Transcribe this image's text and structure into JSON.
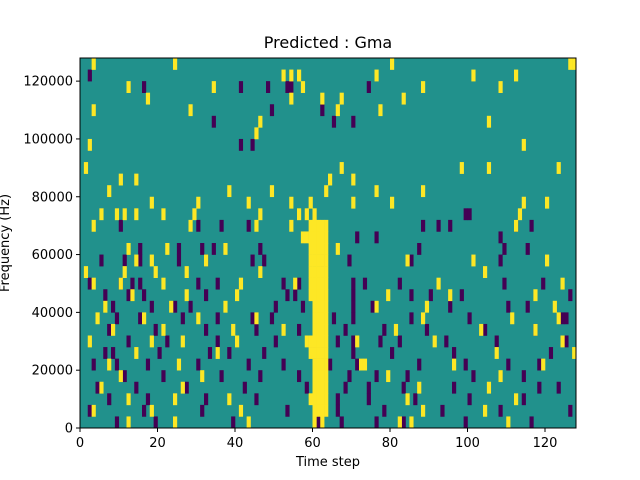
{
  "chart_data": {
    "type": "heatmap",
    "title": "Predicted : Gma",
    "xlabel": "Time step",
    "ylabel": "Frequency (Hz)",
    "xlim": [
      0,
      128
    ],
    "ylim": [
      0,
      128000
    ],
    "x_ticks": [
      0,
      20,
      40,
      60,
      80,
      100,
      120
    ],
    "y_ticks": [
      0,
      20000,
      40000,
      60000,
      80000,
      100000,
      120000
    ],
    "x_tick_labels": [
      "0",
      "20",
      "40",
      "60",
      "80",
      "100",
      "120"
    ],
    "y_tick_labels": [
      "0",
      "20000",
      "40000",
      "60000",
      "80000",
      "100000",
      "120000"
    ],
    "n_time_steps": 128,
    "n_frequency_bins": 32,
    "frequency_bin_hz": 4000,
    "value_levels": {
      "low": -1,
      "mid": 0,
      "high": 1
    },
    "colors": {
      "low": "#440154",
      "mid": "#21918c",
      "high": "#fde725"
    },
    "background_value": 0,
    "low_cells": [
      [
        2,
        30
      ],
      [
        16,
        29
      ],
      [
        41,
        29
      ],
      [
        48,
        29
      ],
      [
        53,
        29
      ],
      [
        54,
        29
      ],
      [
        74,
        29
      ],
      [
        49,
        27
      ],
      [
        62,
        27
      ],
      [
        70,
        26
      ],
      [
        34,
        26
      ],
      [
        65,
        26
      ],
      [
        41,
        24
      ],
      [
        44,
        24
      ],
      [
        100,
        18
      ],
      [
        99,
        18
      ],
      [
        10,
        17
      ],
      [
        30,
        17
      ],
      [
        36,
        17
      ],
      [
        43,
        17
      ],
      [
        88,
        17
      ],
      [
        92,
        17
      ],
      [
        95,
        17
      ],
      [
        112,
        17
      ],
      [
        116,
        17
      ],
      [
        108,
        16
      ],
      [
        71,
        16
      ],
      [
        76,
        16
      ],
      [
        15,
        15
      ],
      [
        25,
        15
      ],
      [
        31,
        15
      ],
      [
        34,
        15
      ],
      [
        46,
        15
      ],
      [
        87,
        15
      ],
      [
        109,
        15
      ],
      [
        115,
        15
      ],
      [
        5,
        14
      ],
      [
        11,
        14
      ],
      [
        15,
        14
      ],
      [
        25,
        14
      ],
      [
        32,
        14
      ],
      [
        44,
        14
      ],
      [
        47,
        14
      ],
      [
        62,
        14
      ],
      [
        69,
        14
      ],
      [
        85,
        14
      ],
      [
        108,
        14
      ],
      [
        2,
        12
      ],
      [
        10,
        12
      ],
      [
        13,
        12
      ],
      [
        15,
        12
      ],
      [
        30,
        12
      ],
      [
        35,
        12
      ],
      [
        52,
        12
      ],
      [
        56,
        12
      ],
      [
        70,
        12
      ],
      [
        73,
        12
      ],
      [
        82,
        12
      ],
      [
        109,
        12
      ],
      [
        119,
        12
      ],
      [
        6,
        11
      ],
      [
        12,
        11
      ],
      [
        16,
        11
      ],
      [
        32,
        11
      ],
      [
        53,
        11
      ],
      [
        55,
        11
      ],
      [
        62,
        11
      ],
      [
        70,
        11
      ],
      [
        85,
        11
      ],
      [
        90,
        11
      ],
      [
        98,
        11
      ],
      [
        126,
        11
      ],
      [
        8,
        10
      ],
      [
        18,
        10
      ],
      [
        24,
        10
      ],
      [
        28,
        10
      ],
      [
        50,
        10
      ],
      [
        57,
        10
      ],
      [
        70,
        10
      ],
      [
        75,
        10
      ],
      [
        95,
        10
      ],
      [
        110,
        10
      ],
      [
        115,
        10
      ],
      [
        9,
        9
      ],
      [
        15,
        9
      ],
      [
        26,
        9
      ],
      [
        35,
        9
      ],
      [
        44,
        9
      ],
      [
        49,
        9
      ],
      [
        65,
        9
      ],
      [
        70,
        9
      ],
      [
        85,
        9
      ],
      [
        100,
        9
      ],
      [
        124,
        9
      ],
      [
        125,
        9
      ],
      [
        7,
        8
      ],
      [
        19,
        8
      ],
      [
        32,
        8
      ],
      [
        45,
        8
      ],
      [
        56,
        8
      ],
      [
        68,
        8
      ],
      [
        78,
        8
      ],
      [
        89,
        8
      ],
      [
        104,
        8
      ],
      [
        117,
        8
      ],
      [
        12,
        7
      ],
      [
        22,
        7
      ],
      [
        35,
        7
      ],
      [
        50,
        7
      ],
      [
        59,
        7
      ],
      [
        66,
        7
      ],
      [
        70,
        7
      ],
      [
        77,
        7
      ],
      [
        82,
        7
      ],
      [
        94,
        7
      ],
      [
        107,
        7
      ],
      [
        125,
        7
      ],
      [
        6,
        6
      ],
      [
        8,
        6
      ],
      [
        20,
        6
      ],
      [
        33,
        6
      ],
      [
        38,
        6
      ],
      [
        47,
        6
      ],
      [
        60,
        6
      ],
      [
        70,
        6
      ],
      [
        80,
        6
      ],
      [
        96,
        6
      ],
      [
        121,
        6
      ],
      [
        3,
        5
      ],
      [
        9,
        5
      ],
      [
        17,
        5
      ],
      [
        30,
        5
      ],
      [
        43,
        5
      ],
      [
        52,
        5
      ],
      [
        64,
        5
      ],
      [
        71,
        5
      ],
      [
        87,
        5
      ],
      [
        99,
        5
      ],
      [
        110,
        5
      ],
      [
        118,
        5
      ],
      [
        11,
        4
      ],
      [
        21,
        4
      ],
      [
        36,
        4
      ],
      [
        46,
        4
      ],
      [
        56,
        4
      ],
      [
        69,
        4
      ],
      [
        76,
        4
      ],
      [
        84,
        4
      ],
      [
        101,
        4
      ],
      [
        114,
        4
      ],
      [
        4,
        3
      ],
      [
        14,
        3
      ],
      [
        27,
        3
      ],
      [
        42,
        3
      ],
      [
        58,
        3
      ],
      [
        68,
        3
      ],
      [
        74,
        3
      ],
      [
        83,
        3
      ],
      [
        96,
        3
      ],
      [
        118,
        3
      ],
      [
        123,
        3
      ],
      [
        7,
        2
      ],
      [
        17,
        2
      ],
      [
        32,
        2
      ],
      [
        45,
        2
      ],
      [
        66,
        2
      ],
      [
        74,
        2
      ],
      [
        86,
        2
      ],
      [
        100,
        2
      ],
      [
        114,
        2
      ],
      [
        2,
        1
      ],
      [
        16,
        1
      ],
      [
        31,
        1
      ],
      [
        53,
        1
      ],
      [
        66,
        1
      ],
      [
        78,
        1
      ],
      [
        93,
        1
      ],
      [
        108,
        1
      ],
      [
        126,
        1
      ],
      [
        9,
        0
      ],
      [
        19,
        0
      ],
      [
        39,
        0
      ],
      [
        61,
        0
      ],
      [
        67,
        0
      ],
      [
        76,
        0
      ],
      [
        83,
        0
      ],
      [
        99,
        0
      ],
      [
        116,
        0
      ]
    ],
    "high_cells": [
      [
        3,
        31
      ],
      [
        24,
        31
      ],
      [
        80,
        31
      ],
      [
        126,
        31
      ],
      [
        127,
        31
      ],
      [
        52,
        30
      ],
      [
        54,
        30
      ],
      [
        56,
        30
      ],
      [
        76,
        30
      ],
      [
        101,
        30
      ],
      [
        112,
        30
      ],
      [
        12,
        29
      ],
      [
        34,
        29
      ],
      [
        57,
        29
      ],
      [
        88,
        29
      ],
      [
        108,
        29
      ],
      [
        17,
        28
      ],
      [
        54,
        28
      ],
      [
        62,
        28
      ],
      [
        67,
        28
      ],
      [
        83,
        28
      ],
      [
        3,
        27
      ],
      [
        28,
        27
      ],
      [
        66,
        27
      ],
      [
        77,
        27
      ],
      [
        46,
        26
      ],
      [
        105,
        26
      ],
      [
        45,
        25
      ],
      [
        2,
        24
      ],
      [
        114,
        24
      ],
      [
        1,
        22
      ],
      [
        67,
        22
      ],
      [
        98,
        22
      ],
      [
        105,
        22
      ],
      [
        123,
        22
      ],
      [
        10,
        21
      ],
      [
        14,
        21
      ],
      [
        64,
        21
      ],
      [
        70,
        21
      ],
      [
        7,
        20
      ],
      [
        38,
        20
      ],
      [
        49,
        20
      ],
      [
        63,
        20
      ],
      [
        76,
        20
      ],
      [
        88,
        20
      ],
      [
        18,
        19
      ],
      [
        30,
        19
      ],
      [
        43,
        19
      ],
      [
        54,
        19
      ],
      [
        59,
        19
      ],
      [
        70,
        19
      ],
      [
        80,
        19
      ],
      [
        114,
        19
      ],
      [
        120,
        19
      ],
      [
        5,
        18
      ],
      [
        9,
        18
      ],
      [
        11,
        18
      ],
      [
        14,
        18
      ],
      [
        21,
        18
      ],
      [
        29,
        18
      ],
      [
        46,
        18
      ],
      [
        56,
        18
      ],
      [
        58,
        18
      ],
      [
        60,
        18
      ],
      [
        113,
        18
      ],
      [
        3,
        17
      ],
      [
        28,
        17
      ],
      [
        45,
        17
      ],
      [
        54,
        17
      ],
      [
        59,
        17
      ],
      [
        60,
        17
      ],
      [
        61,
        17
      ],
      [
        62,
        17
      ],
      [
        63,
        17
      ],
      [
        112,
        17
      ],
      [
        57,
        16
      ],
      [
        58,
        16
      ],
      [
        59,
        16
      ],
      [
        60,
        16
      ],
      [
        61,
        16
      ],
      [
        62,
        16
      ],
      [
        63,
        16
      ],
      [
        12,
        15
      ],
      [
        22,
        15
      ],
      [
        37,
        15
      ],
      [
        59,
        15
      ],
      [
        60,
        15
      ],
      [
        61,
        15
      ],
      [
        62,
        15
      ],
      [
        63,
        15
      ],
      [
        66,
        15
      ],
      [
        14,
        14
      ],
      [
        18,
        14
      ],
      [
        32,
        14
      ],
      [
        59,
        14
      ],
      [
        60,
        14
      ],
      [
        61,
        14
      ],
      [
        62,
        14
      ],
      [
        63,
        14
      ],
      [
        84,
        14
      ],
      [
        101,
        14
      ],
      [
        120,
        14
      ],
      [
        1,
        13
      ],
      [
        11,
        13
      ],
      [
        19,
        13
      ],
      [
        27,
        13
      ],
      [
        46,
        13
      ],
      [
        59,
        13
      ],
      [
        60,
        13
      ],
      [
        61,
        13
      ],
      [
        62,
        13
      ],
      [
        63,
        13
      ],
      [
        104,
        13
      ],
      [
        3,
        12
      ],
      [
        10,
        12
      ],
      [
        21,
        12
      ],
      [
        41,
        12
      ],
      [
        55,
        12
      ],
      [
        59,
        12
      ],
      [
        60,
        12
      ],
      [
        61,
        12
      ],
      [
        62,
        12
      ],
      [
        63,
        12
      ],
      [
        92,
        12
      ],
      [
        124,
        12
      ],
      [
        13,
        11
      ],
      [
        27,
        11
      ],
      [
        40,
        11
      ],
      [
        59,
        11
      ],
      [
        60,
        11
      ],
      [
        61,
        11
      ],
      [
        62,
        11
      ],
      [
        63,
        11
      ],
      [
        79,
        11
      ],
      [
        95,
        11
      ],
      [
        117,
        11
      ],
      [
        6,
        10
      ],
      [
        23,
        10
      ],
      [
        37,
        10
      ],
      [
        60,
        10
      ],
      [
        61,
        10
      ],
      [
        62,
        10
      ],
      [
        63,
        10
      ],
      [
        76,
        10
      ],
      [
        89,
        10
      ],
      [
        122,
        10
      ],
      [
        4,
        9
      ],
      [
        16,
        9
      ],
      [
        30,
        9
      ],
      [
        45,
        9
      ],
      [
        60,
        9
      ],
      [
        61,
        9
      ],
      [
        62,
        9
      ],
      [
        63,
        9
      ],
      [
        88,
        9
      ],
      [
        111,
        9
      ],
      [
        123,
        9
      ],
      [
        8,
        8
      ],
      [
        21,
        8
      ],
      [
        39,
        8
      ],
      [
        52,
        8
      ],
      [
        60,
        8
      ],
      [
        61,
        8
      ],
      [
        62,
        8
      ],
      [
        63,
        8
      ],
      [
        81,
        8
      ],
      [
        103,
        8
      ],
      [
        117,
        8
      ],
      [
        2,
        7
      ],
      [
        18,
        7
      ],
      [
        26,
        7
      ],
      [
        40,
        7
      ],
      [
        58,
        7
      ],
      [
        59,
        7
      ],
      [
        60,
        7
      ],
      [
        61,
        7
      ],
      [
        62,
        7
      ],
      [
        63,
        7
      ],
      [
        71,
        7
      ],
      [
        91,
        7
      ],
      [
        124,
        7
      ],
      [
        14,
        6
      ],
      [
        35,
        6
      ],
      [
        59,
        6
      ],
      [
        60,
        6
      ],
      [
        61,
        6
      ],
      [
        62,
        6
      ],
      [
        63,
        6
      ],
      [
        107,
        6
      ],
      [
        127,
        6
      ],
      [
        7,
        5
      ],
      [
        25,
        5
      ],
      [
        60,
        5
      ],
      [
        61,
        5
      ],
      [
        62,
        5
      ],
      [
        63,
        5
      ],
      [
        72,
        5
      ],
      [
        73,
        5
      ],
      [
        96,
        5
      ],
      [
        119,
        5
      ],
      [
        10,
        4
      ],
      [
        31,
        4
      ],
      [
        60,
        4
      ],
      [
        61,
        4
      ],
      [
        62,
        4
      ],
      [
        63,
        4
      ],
      [
        79,
        4
      ],
      [
        108,
        4
      ],
      [
        5,
        3
      ],
      [
        26,
        3
      ],
      [
        60,
        3
      ],
      [
        61,
        3
      ],
      [
        62,
        3
      ],
      [
        63,
        3
      ],
      [
        87,
        3
      ],
      [
        105,
        3
      ],
      [
        12,
        2
      ],
      [
        24,
        2
      ],
      [
        38,
        2
      ],
      [
        59,
        2
      ],
      [
        60,
        2
      ],
      [
        61,
        2
      ],
      [
        62,
        2
      ],
      [
        63,
        2
      ],
      [
        84,
        2
      ],
      [
        112,
        2
      ],
      [
        3,
        1
      ],
      [
        18,
        1
      ],
      [
        41,
        1
      ],
      [
        60,
        1
      ],
      [
        61,
        1
      ],
      [
        62,
        1
      ],
      [
        63,
        1
      ],
      [
        88,
        1
      ],
      [
        104,
        1
      ],
      [
        12,
        0
      ],
      [
        24,
        0
      ],
      [
        43,
        0
      ],
      [
        60,
        0
      ],
      [
        62,
        0
      ],
      [
        82,
        0
      ],
      [
        85,
        0
      ],
      [
        110,
        0
      ]
    ]
  }
}
